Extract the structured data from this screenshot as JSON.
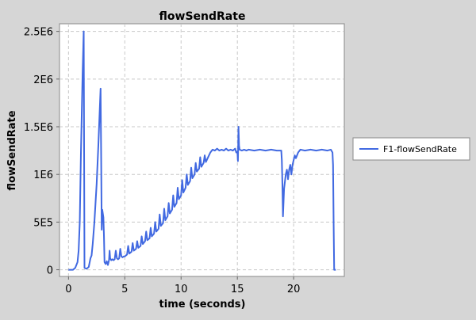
{
  "chart_data": {
    "type": "line",
    "title": "flowSendRate",
    "xlabel": "time (seconds)",
    "ylabel": "flowSendRate",
    "xlim": [
      -0.8,
      24.5
    ],
    "ylim": [
      -70000,
      2580000
    ],
    "x_ticks": [
      {
        "value": 0,
        "label": "0"
      },
      {
        "value": 5,
        "label": "5"
      },
      {
        "value": 10,
        "label": "10"
      },
      {
        "value": 15,
        "label": "15"
      },
      {
        "value": 20,
        "label": "20"
      }
    ],
    "y_ticks": [
      {
        "value": 0,
        "label": "0"
      },
      {
        "value": 500000,
        "label": "5E5"
      },
      {
        "value": 1000000,
        "label": "1E6"
      },
      {
        "value": 1500000,
        "label": "1.5E6"
      },
      {
        "value": 2000000,
        "label": "2E6"
      },
      {
        "value": 2500000,
        "label": "2.5E6"
      }
    ],
    "grid": true,
    "legend_position": "right",
    "series": [
      {
        "name": "F1-flowSendRate",
        "color": "#4169e1",
        "points": [
          [
            0.0,
            0
          ],
          [
            0.4,
            0
          ],
          [
            0.6,
            20000
          ],
          [
            0.8,
            80000
          ],
          [
            0.9,
            200000
          ],
          [
            1.0,
            500000
          ],
          [
            1.1,
            1200000
          ],
          [
            1.25,
            2050000
          ],
          [
            1.35,
            2500000
          ],
          [
            1.42,
            20000
          ],
          [
            1.6,
            10000
          ],
          [
            1.8,
            30000
          ],
          [
            1.95,
            120000
          ],
          [
            2.05,
            150000
          ],
          [
            2.15,
            270000
          ],
          [
            2.3,
            500000
          ],
          [
            2.5,
            900000
          ],
          [
            2.65,
            1300000
          ],
          [
            2.75,
            1600000
          ],
          [
            2.85,
            1900000
          ],
          [
            2.9,
            1200000
          ],
          [
            2.95,
            420000
          ],
          [
            3.0,
            630000
          ],
          [
            3.1,
            550000
          ],
          [
            3.15,
            350000
          ],
          [
            3.2,
            80000
          ],
          [
            3.3,
            60000
          ],
          [
            3.4,
            90000
          ],
          [
            3.5,
            50000
          ],
          [
            3.6,
            100000
          ],
          [
            3.65,
            200000
          ],
          [
            3.7,
            120000
          ],
          [
            3.8,
            100000
          ],
          [
            3.9,
            110000
          ],
          [
            4.0,
            100000
          ],
          [
            4.1,
            110000
          ],
          [
            4.2,
            200000
          ],
          [
            4.3,
            120000
          ],
          [
            4.4,
            110000
          ],
          [
            4.5,
            120000
          ],
          [
            4.6,
            220000
          ],
          [
            4.7,
            140000
          ],
          [
            4.8,
            130000
          ],
          [
            4.9,
            140000
          ],
          [
            5.0,
            140000
          ],
          [
            5.2,
            160000
          ],
          [
            5.3,
            250000
          ],
          [
            5.4,
            170000
          ],
          [
            5.6,
            190000
          ],
          [
            5.7,
            280000
          ],
          [
            5.8,
            200000
          ],
          [
            6.0,
            220000
          ],
          [
            6.1,
            300000
          ],
          [
            6.2,
            230000
          ],
          [
            6.4,
            250000
          ],
          [
            6.5,
            350000
          ],
          [
            6.6,
            270000
          ],
          [
            6.8,
            300000
          ],
          [
            6.9,
            400000
          ],
          [
            7.0,
            310000
          ],
          [
            7.2,
            330000
          ],
          [
            7.3,
            440000
          ],
          [
            7.4,
            350000
          ],
          [
            7.6,
            380000
          ],
          [
            7.7,
            500000
          ],
          [
            7.8,
            400000
          ],
          [
            8.0,
            430000
          ],
          [
            8.1,
            580000
          ],
          [
            8.2,
            460000
          ],
          [
            8.4,
            490000
          ],
          [
            8.5,
            640000
          ],
          [
            8.6,
            520000
          ],
          [
            8.8,
            560000
          ],
          [
            8.9,
            700000
          ],
          [
            9.0,
            590000
          ],
          [
            9.2,
            630000
          ],
          [
            9.3,
            780000
          ],
          [
            9.4,
            660000
          ],
          [
            9.6,
            700000
          ],
          [
            9.7,
            860000
          ],
          [
            9.8,
            740000
          ],
          [
            10.0,
            780000
          ],
          [
            10.1,
            940000
          ],
          [
            10.2,
            810000
          ],
          [
            10.4,
            860000
          ],
          [
            10.5,
            1000000
          ],
          [
            10.6,
            890000
          ],
          [
            10.8,
            930000
          ],
          [
            10.9,
            1070000
          ],
          [
            11.0,
            960000
          ],
          [
            11.2,
            1000000
          ],
          [
            11.3,
            1120000
          ],
          [
            11.4,
            1030000
          ],
          [
            11.6,
            1060000
          ],
          [
            11.7,
            1180000
          ],
          [
            11.8,
            1080000
          ],
          [
            12.0,
            1120000
          ],
          [
            12.1,
            1200000
          ],
          [
            12.2,
            1130000
          ],
          [
            12.4,
            1180000
          ],
          [
            12.6,
            1230000
          ],
          [
            12.8,
            1260000
          ],
          [
            13.0,
            1250000
          ],
          [
            13.2,
            1270000
          ],
          [
            13.4,
            1250000
          ],
          [
            13.6,
            1260000
          ],
          [
            13.8,
            1250000
          ],
          [
            14.0,
            1270000
          ],
          [
            14.2,
            1250000
          ],
          [
            14.4,
            1260000
          ],
          [
            14.6,
            1250000
          ],
          [
            14.8,
            1270000
          ],
          [
            14.9,
            1230000
          ],
          [
            15.0,
            1240000
          ],
          [
            15.05,
            1140000
          ],
          [
            15.1,
            1500000
          ],
          [
            15.15,
            1300000
          ],
          [
            15.2,
            1260000
          ],
          [
            15.4,
            1250000
          ],
          [
            15.6,
            1260000
          ],
          [
            15.8,
            1250000
          ],
          [
            16.0,
            1260000
          ],
          [
            16.5,
            1250000
          ],
          [
            17.0,
            1260000
          ],
          [
            17.5,
            1250000
          ],
          [
            18.0,
            1260000
          ],
          [
            18.5,
            1250000
          ],
          [
            18.9,
            1250000
          ],
          [
            18.95,
            1150000
          ],
          [
            19.0,
            900000
          ],
          [
            19.05,
            560000
          ],
          [
            19.15,
            850000
          ],
          [
            19.3,
            1000000
          ],
          [
            19.4,
            1050000
          ],
          [
            19.5,
            950000
          ],
          [
            19.6,
            1050000
          ],
          [
            19.7,
            1100000
          ],
          [
            19.8,
            1000000
          ],
          [
            19.9,
            1100000
          ],
          [
            20.0,
            1150000
          ],
          [
            20.1,
            1200000
          ],
          [
            20.2,
            1170000
          ],
          [
            20.4,
            1230000
          ],
          [
            20.6,
            1260000
          ],
          [
            21.0,
            1250000
          ],
          [
            21.5,
            1260000
          ],
          [
            22.0,
            1250000
          ],
          [
            22.5,
            1260000
          ],
          [
            23.0,
            1250000
          ],
          [
            23.3,
            1260000
          ],
          [
            23.45,
            1230000
          ],
          [
            23.5,
            1100000
          ],
          [
            23.55,
            500000
          ],
          [
            23.6,
            0
          ],
          [
            23.75,
            0
          ]
        ]
      }
    ]
  }
}
